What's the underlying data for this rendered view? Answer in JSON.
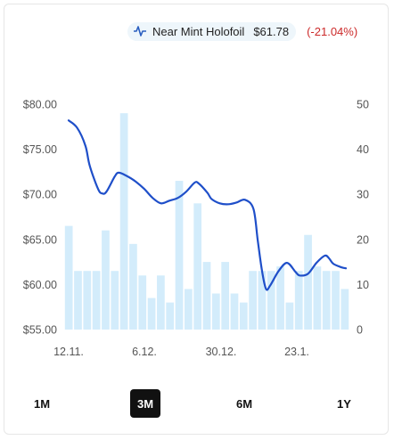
{
  "legend": {
    "icon": "line-chart-icon",
    "series_name": "Near Mint Holofoil",
    "price": "$61.78",
    "change": "(-21.04%)",
    "change_color": "#cc2a2a",
    "line_color": "#1f4fc9",
    "bar_color": "#d3ecfb"
  },
  "tabs": [
    {
      "label": "1M",
      "active": false
    },
    {
      "label": "3M",
      "active": true
    },
    {
      "label": "6M",
      "active": false
    },
    {
      "label": "1Y",
      "active": false
    }
  ],
  "chart_data": {
    "type": "line",
    "left_axis": {
      "ticks": [
        "$80.00",
        "$75.00",
        "$70.00",
        "$65.00",
        "$60.00",
        "$55.00"
      ],
      "range": [
        55,
        80
      ]
    },
    "right_axis": {
      "ticks": [
        "50",
        "40",
        "30",
        "20",
        "10",
        "0"
      ],
      "range": [
        0,
        50
      ]
    },
    "x_tick_labels": [
      "12.11.",
      "6.12.",
      "30.12.",
      "23.1."
    ],
    "price_series": {
      "name": "Near Mint Holofoil",
      "points": [
        [
          0,
          78.2
        ],
        [
          2,
          77.4
        ],
        [
          4,
          75.4
        ],
        [
          5,
          73.2
        ],
        [
          7,
          70.6
        ],
        [
          8,
          70.1
        ],
        [
          9,
          70.3
        ],
        [
          11,
          72.0
        ],
        [
          12,
          72.4
        ],
        [
          14,
          72.0
        ],
        [
          16,
          71.4
        ],
        [
          18,
          70.6
        ],
        [
          20,
          69.6
        ],
        [
          22,
          69.0
        ],
        [
          24,
          69.3
        ],
        [
          26,
          69.6
        ],
        [
          28,
          70.3
        ],
        [
          30,
          71.3
        ],
        [
          31,
          71.2
        ],
        [
          33,
          70.2
        ],
        [
          34,
          69.5
        ],
        [
          36,
          69.0
        ],
        [
          38,
          68.9
        ],
        [
          40,
          69.1
        ],
        [
          42,
          69.4
        ],
        [
          44,
          68.4
        ],
        [
          45,
          65.0
        ],
        [
          46,
          61.6
        ],
        [
          47,
          59.5
        ],
        [
          48,
          59.9
        ],
        [
          50,
          61.5
        ],
        [
          52,
          62.4
        ],
        [
          54,
          61.4
        ],
        [
          55,
          61.0
        ],
        [
          57,
          61.2
        ],
        [
          59,
          62.4
        ],
        [
          61,
          63.2
        ],
        [
          62,
          62.9
        ],
        [
          63,
          62.3
        ],
        [
          65,
          61.9
        ],
        [
          66,
          61.8
        ]
      ]
    },
    "volume_series": {
      "values": [
        23,
        13,
        13,
        13,
        22,
        13,
        48,
        19,
        12,
        7,
        12,
        6,
        33,
        9,
        28,
        15,
        8,
        15,
        8,
        6,
        13,
        13,
        13,
        14,
        6,
        13,
        21,
        14,
        13,
        13,
        9
      ]
    }
  }
}
